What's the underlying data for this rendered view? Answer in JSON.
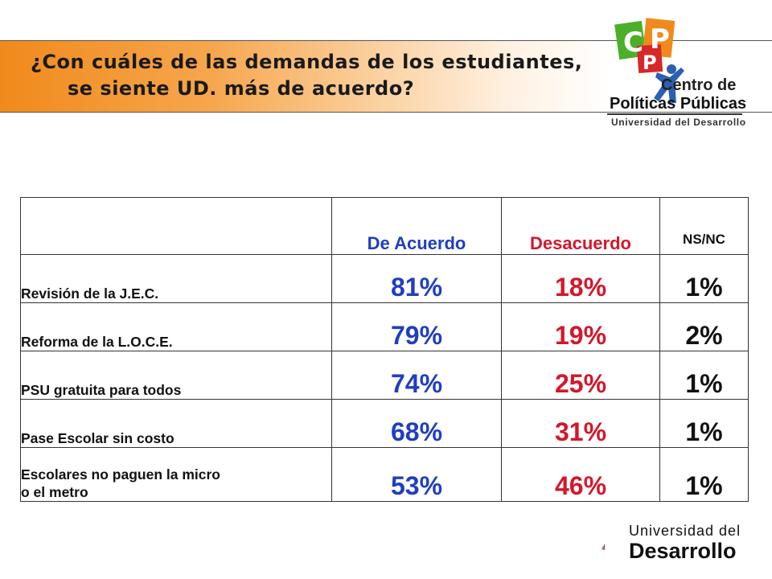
{
  "header": {
    "title_line1": "¿Con cuáles de las demandas de los estudiantes,",
    "title_line2": "se siente UD.  más de acuerdo?"
  },
  "logo_cpp": {
    "letters": "CPP",
    "line1": "Centro de",
    "line2": "Políticas Públicas",
    "line3": "Universidad del Desarrollo",
    "colors": {
      "green": "#4caf2a",
      "orange": "#f08a1c",
      "red": "#d62828",
      "blue": "#2d5fb3"
    }
  },
  "table": {
    "headers": [
      "",
      "De Acuerdo",
      "Desacuerdo",
      "NS/NC"
    ],
    "rows": [
      {
        "label": "Revisión de la J.E.C.",
        "agree": "81%",
        "disagree": "18%",
        "ns": "1%"
      },
      {
        "label": "Reforma de la  L.O.C.E.",
        "agree": "79%",
        "disagree": "19%",
        "ns": "2%"
      },
      {
        "label": "PSU gratuita para todos",
        "agree": "74%",
        "disagree": "25%",
        "ns": "1%"
      },
      {
        "label": "Pase Escolar sin costo",
        "agree": "68%",
        "disagree": "31%",
        "ns": "1%"
      },
      {
        "label": "Escolares no paguen la micro\n o el metro",
        "agree": "53%",
        "disagree": "46%",
        "ns": "1%"
      }
    ],
    "colors": {
      "agree": "#1f3fbf",
      "disagree": "#d4172b",
      "ns": "#111111"
    }
  },
  "logo_ud": {
    "line1": "Universidad del",
    "line2": "Desarrollo"
  }
}
